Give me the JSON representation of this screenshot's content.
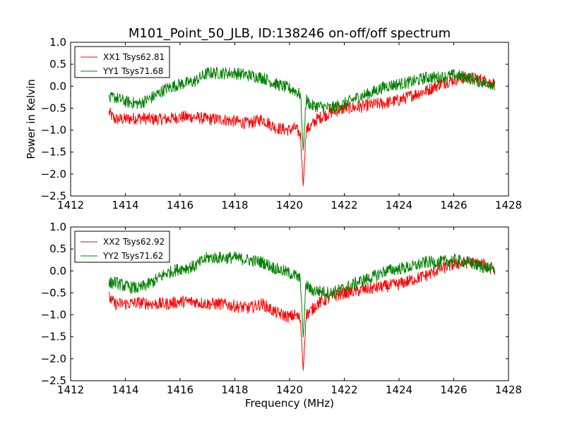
{
  "figure": {
    "title": "M101_Point_50_JLB, ID:138246 on-off/off spectrum",
    "xlabel": "Frequency (MHz)",
    "ylabel": "Power in Kelvin"
  },
  "chart_data": [
    {
      "type": "line",
      "panel": "top",
      "xlim": [
        1412,
        1428
      ],
      "ylim": [
        -2.5,
        1.0
      ],
      "xticks": [
        1412,
        1414,
        1416,
        1418,
        1420,
        1422,
        1424,
        1426,
        1428
      ],
      "yticks": [
        -2.5,
        -2.0,
        -1.5,
        -1.0,
        -0.5,
        0.0,
        0.5,
        1.0
      ],
      "ytick_labels": [
        "−2.5",
        "−2.0",
        "−1.5",
        "−1.0",
        "−0.5",
        "0.0",
        "0.5",
        "1.0"
      ],
      "ylabel": "Power in Kelvin",
      "xlabel": "",
      "legend": "upper-left",
      "grid": false,
      "series": [
        {
          "name": "XX1 Tsys62.81",
          "color": "#ff0000",
          "x": [
            1413.4,
            1413.6,
            1414.0,
            1414.5,
            1415.0,
            1415.5,
            1416.0,
            1416.5,
            1417.0,
            1417.5,
            1418.0,
            1418.5,
            1419.0,
            1419.5,
            1420.0,
            1420.2,
            1420.4,
            1420.5,
            1420.6,
            1420.8,
            1421.0,
            1421.5,
            1422.0,
            1422.5,
            1423.0,
            1423.5,
            1424.0,
            1424.5,
            1425.0,
            1425.5,
            1426.0,
            1426.5,
            1427.0,
            1427.5
          ],
          "y": [
            -0.6,
            -0.75,
            -0.75,
            -0.72,
            -0.75,
            -0.75,
            -0.7,
            -0.7,
            -0.75,
            -0.75,
            -0.8,
            -0.85,
            -0.75,
            -0.95,
            -1.0,
            -0.95,
            -1.1,
            -2.3,
            -1.0,
            -0.9,
            -0.75,
            -0.6,
            -0.5,
            -0.48,
            -0.42,
            -0.38,
            -0.32,
            -0.2,
            -0.1,
            0.05,
            0.15,
            0.2,
            0.15,
            0.05
          ]
        },
        {
          "name": "YY1 Tsys71.68",
          "color": "#008000",
          "x": [
            1413.4,
            1413.6,
            1414.0,
            1414.5,
            1415.0,
            1415.5,
            1416.0,
            1416.5,
            1417.0,
            1417.5,
            1418.0,
            1418.5,
            1419.0,
            1419.5,
            1420.0,
            1420.2,
            1420.4,
            1420.5,
            1420.6,
            1420.8,
            1421.0,
            1421.5,
            1422.0,
            1422.5,
            1423.0,
            1423.5,
            1424.0,
            1424.5,
            1425.0,
            1425.5,
            1426.0,
            1426.5,
            1427.0,
            1427.5
          ],
          "y": [
            -0.3,
            -0.25,
            -0.35,
            -0.4,
            -0.25,
            -0.05,
            0.05,
            0.1,
            0.3,
            0.3,
            0.3,
            0.25,
            0.2,
            0.05,
            -0.05,
            -0.1,
            -0.2,
            -1.5,
            -0.3,
            -0.45,
            -0.45,
            -0.5,
            -0.4,
            -0.25,
            -0.15,
            0.0,
            0.05,
            0.1,
            0.2,
            0.2,
            0.25,
            0.2,
            0.1,
            0.05
          ]
        }
      ]
    },
    {
      "type": "line",
      "panel": "bottom",
      "xlim": [
        1412,
        1428
      ],
      "ylim": [
        -2.5,
        1.0
      ],
      "xticks": [
        1412,
        1414,
        1416,
        1418,
        1420,
        1422,
        1424,
        1426,
        1428
      ],
      "yticks": [
        -2.5,
        -2.0,
        -1.5,
        -1.0,
        -0.5,
        0.0,
        0.5,
        1.0
      ],
      "ytick_labels": [
        "−2.5",
        "−2.0",
        "−1.5",
        "−1.0",
        "−0.5",
        "0.0",
        "0.5",
        "1.0"
      ],
      "ylabel": "",
      "xlabel": "Frequency (MHz)",
      "legend": "upper-left",
      "grid": false,
      "series": [
        {
          "name": "XX2 Tsys62.92",
          "color": "#ff0000",
          "x": [
            1413.4,
            1413.6,
            1414.0,
            1414.5,
            1415.0,
            1415.5,
            1416.0,
            1416.5,
            1417.0,
            1417.5,
            1418.0,
            1418.5,
            1419.0,
            1419.5,
            1420.0,
            1420.2,
            1420.4,
            1420.5,
            1420.6,
            1420.8,
            1421.0,
            1421.5,
            1422.0,
            1422.5,
            1423.0,
            1423.5,
            1424.0,
            1424.5,
            1425.0,
            1425.5,
            1426.0,
            1426.5,
            1427.0,
            1427.5
          ],
          "y": [
            -0.6,
            -0.75,
            -0.75,
            -0.72,
            -0.75,
            -0.75,
            -0.7,
            -0.7,
            -0.75,
            -0.75,
            -0.8,
            -0.85,
            -0.75,
            -0.95,
            -1.05,
            -1.0,
            -1.1,
            -2.3,
            -1.0,
            -0.9,
            -0.75,
            -0.6,
            -0.5,
            -0.45,
            -0.4,
            -0.35,
            -0.3,
            -0.2,
            -0.1,
            0.05,
            0.15,
            0.2,
            0.15,
            0.05
          ]
        },
        {
          "name": "YY2 Tsys71.62",
          "color": "#008000",
          "x": [
            1413.4,
            1413.6,
            1414.0,
            1414.5,
            1415.0,
            1415.5,
            1416.0,
            1416.5,
            1417.0,
            1417.5,
            1418.0,
            1418.5,
            1419.0,
            1419.5,
            1420.0,
            1420.2,
            1420.4,
            1420.5,
            1420.6,
            1420.8,
            1421.0,
            1421.5,
            1422.0,
            1422.5,
            1423.0,
            1423.5,
            1424.0,
            1424.5,
            1425.0,
            1425.5,
            1426.0,
            1426.5,
            1427.0,
            1427.5
          ],
          "y": [
            -0.3,
            -0.25,
            -0.35,
            -0.4,
            -0.25,
            -0.05,
            0.05,
            0.1,
            0.3,
            0.3,
            0.3,
            0.25,
            0.2,
            0.05,
            -0.05,
            -0.1,
            -0.2,
            -1.55,
            -0.3,
            -0.45,
            -0.45,
            -0.5,
            -0.4,
            -0.25,
            -0.15,
            0.0,
            0.05,
            0.1,
            0.2,
            0.2,
            0.25,
            0.2,
            0.1,
            0.05
          ]
        }
      ]
    }
  ]
}
